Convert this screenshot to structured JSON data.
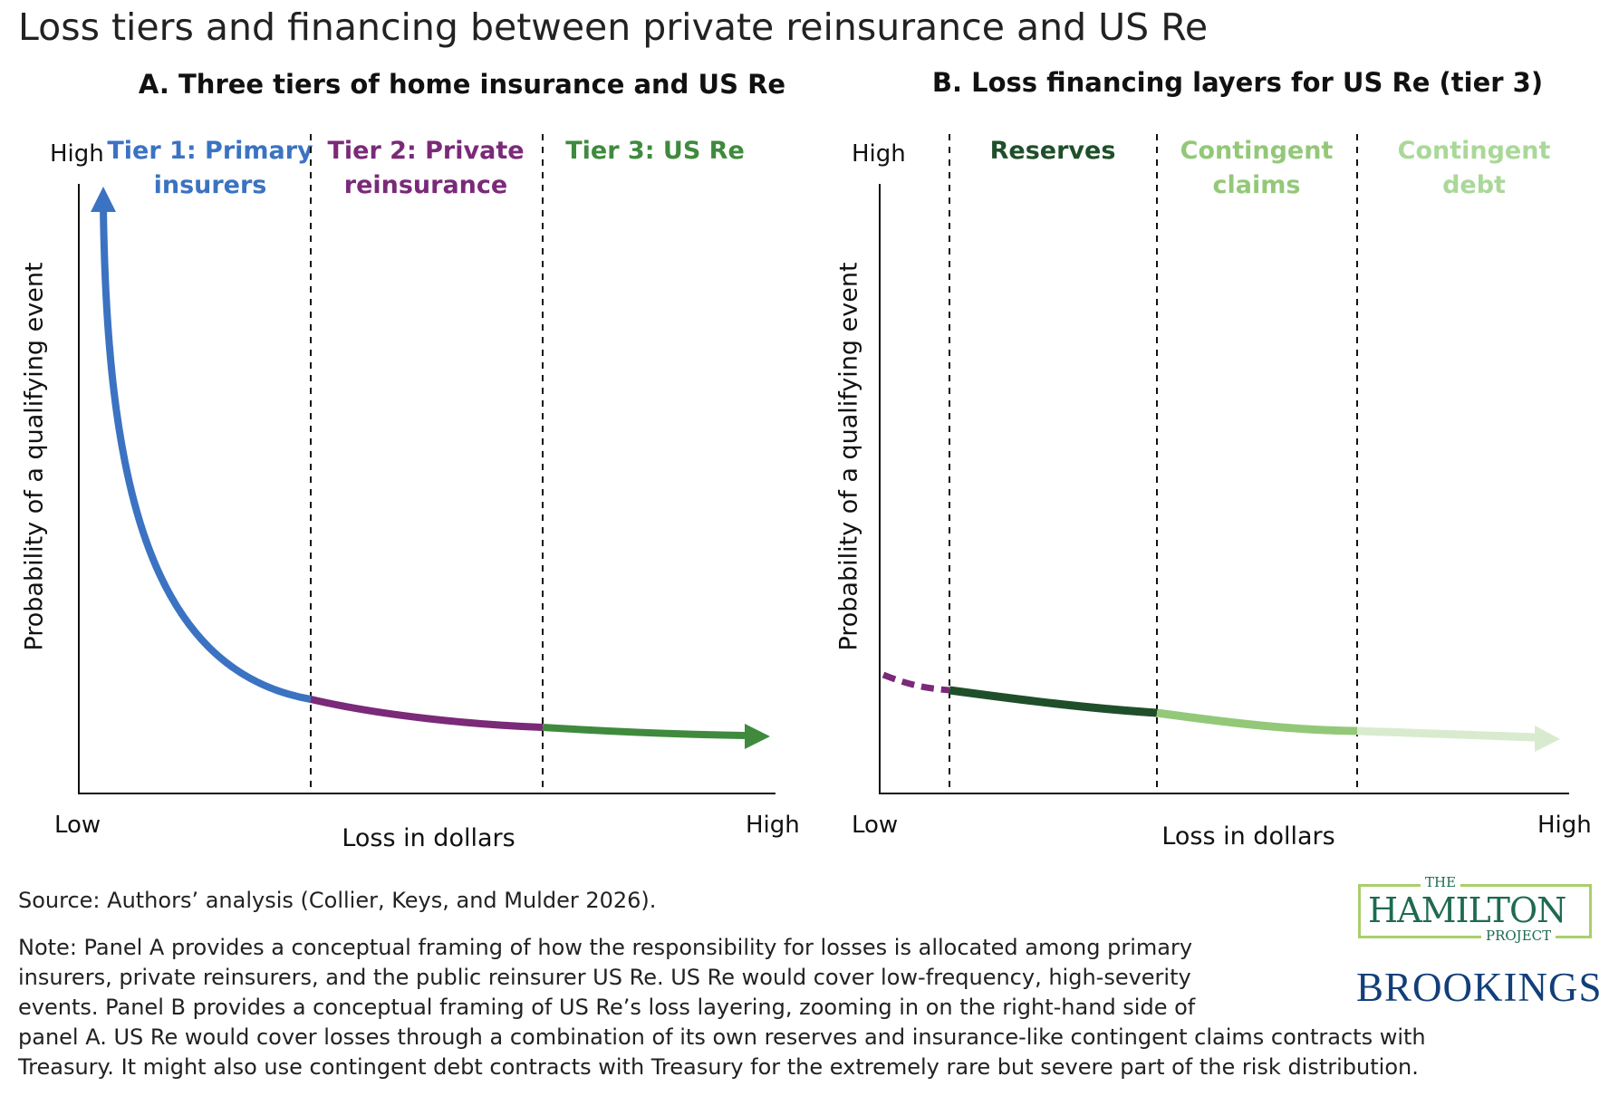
{
  "title": "Loss tiers and financing between private reinsurance and US Re",
  "chart_data": [
    {
      "type": "line",
      "title": "A. Three tiers of home insurance and US Re",
      "xlabel": "Loss in dollars",
      "ylabel": "Probability of a qualifying event",
      "x_tick_labels": [
        "Low",
        "High"
      ],
      "y_tick_labels": [
        "High"
      ],
      "regions": [
        {
          "label_line1": "Tier 1: Primary",
          "label_line2": "insurers",
          "color": "#3b73c2"
        },
        {
          "label_line1": "Tier 2: Private",
          "label_line2": "reinsurance",
          "color": "#7a2a78"
        },
        {
          "label_line1": "Tier 3: US Re",
          "label_line2": "",
          "color": "#3f8a3d"
        }
      ],
      "grid": false
    },
    {
      "type": "line",
      "title": "B. Loss financing layers for US Re (tier 3)",
      "xlabel": "Loss in dollars",
      "ylabel": "Probability of a qualifying event",
      "x_tick_labels": [
        "Low",
        "High"
      ],
      "y_tick_labels": [
        "High"
      ],
      "regions": [
        {
          "label_line1": "Reserves",
          "label_line2": "",
          "color": "#1f4f2a"
        },
        {
          "label_line1": "Contingent",
          "label_line2": "claims",
          "color": "#93c878"
        },
        {
          "label_line1": "Contingent",
          "label_line2": "debt",
          "color": "#d8ebcf",
          "label_color": "#a9d898"
        }
      ],
      "lead_in_color": "#7a2a78",
      "grid": false
    }
  ],
  "source": "Source: Authors’ analysis (Collier, Keys, and Mulder 2026).",
  "note_lines": [
    "Note: Panel A provides a conceptual framing of how the responsibility for losses is allocated among primary",
    "insurers, private reinsurers, and the public reinsurer US Re. US Re would cover low-frequency, high-severity",
    "events. Panel B provides a conceptual framing of US Re’s loss layering, zooming in on the right-hand side of",
    "panel A. US Re would cover losses through a combination of its own reserves and insurance-like contingent claims contracts with",
    "Treasury. It might also use contingent debt contracts with Treasury for the extremely rare but severe part of the risk distribution."
  ],
  "logos": {
    "hamilton_the": "THE",
    "hamilton_name": "HAMILTON",
    "hamilton_project": "PROJECT",
    "brookings": "BROOKINGS"
  }
}
